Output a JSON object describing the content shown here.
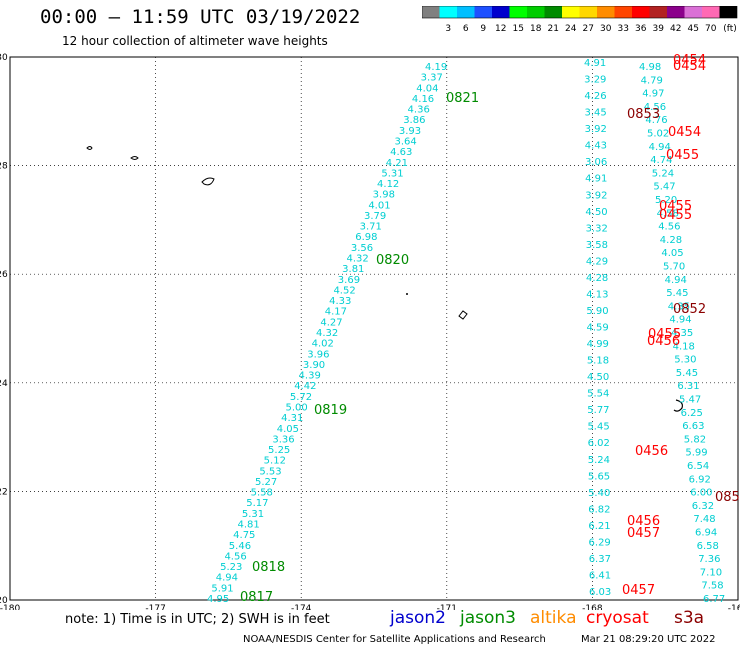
{
  "header": {
    "title": "00:00 – 11:59 UTC 03/19/2022",
    "subtitle": "12 hour collection of altimeter wave heights"
  },
  "colorbar": {
    "unit": "(ft)",
    "colors": [
      "#808080",
      "#00ffff",
      "#00bfff",
      "#1e50ff",
      "#0000cd",
      "#00ff00",
      "#00cd00",
      "#008b00",
      "#ffff00",
      "#ffd700",
      "#ff8c00",
      "#ff4500",
      "#ff0000",
      "#b22222",
      "#8b008b",
      "#da70d6",
      "#ff69b4",
      "#000000"
    ],
    "labels": [
      "3",
      "6",
      "9",
      "12",
      "15",
      "18",
      "21",
      "24",
      "27",
      "30",
      "33",
      "36",
      "39",
      "42",
      "45",
      "70"
    ]
  },
  "map": {
    "lon_range": [
      -180,
      -165
    ],
    "lat_range": [
      20,
      30
    ],
    "x_ticks": [
      "-180",
      "-177",
      "-174",
      "-171",
      "-168",
      "-165"
    ],
    "y_ticks": [
      "30",
      "28",
      "26",
      "24",
      "22",
      "20"
    ],
    "colors": {
      "jason2": "#0000cd",
      "jason3": "#008b00",
      "altika": "#ff8c00",
      "cryosat": "#ff0000",
      "s3a": "#8b0000",
      "track": "#00ced1"
    }
  },
  "tracks": {
    "left": [
      "4.19",
      "3.37",
      "4.04",
      "4.16",
      "4.36",
      "3.86",
      "3.93",
      "3.64",
      "4.63",
      "4.21",
      "5.31",
      "4.12",
      "3.98",
      "4.01",
      "3.79",
      "3.71",
      "6.98",
      "3.56",
      "4.32",
      "3.81",
      "3.69",
      "4.52",
      "4.33",
      "4.17",
      "4.27",
      "4.32",
      "4.02",
      "3.96",
      "3.90",
      "4.39",
      "4.42",
      "5.72",
      "5.00",
      "4.31",
      "4.05",
      "3.36",
      "5.25",
      "5.12",
      "5.53",
      "5.27",
      "5.58",
      "5.17",
      "5.31",
      "4.81",
      "4.75",
      "5.46",
      "4.56",
      "5.23",
      "4.94",
      "5.91",
      "4.95"
    ],
    "right1": [
      "4.91",
      "3.29",
      "4.26",
      "3.45",
      "3.92",
      "4.43",
      "3.06",
      "4.91",
      "3.92",
      "4.50",
      "3.32",
      "3.58",
      "4.29",
      "4.28",
      "4.13",
      "5.90",
      "4.59",
      "4.99",
      "5.18",
      "4.50",
      "5.54",
      "5.77",
      "5.45",
      "6.02",
      "5.24",
      "5.65",
      "5.40",
      "6.82",
      "6.21",
      "6.29",
      "6.37",
      "6.41",
      "6.03"
    ],
    "right2": [
      "4.98",
      "4.79",
      "4.97",
      "4.56",
      "4.76",
      "5.02",
      "4.94",
      "4.74",
      "5.24",
      "5.47",
      "5.20",
      "4.58",
      "4.56",
      "4.28",
      "4.05",
      "5.70",
      "4.94",
      "5.45",
      "4.35",
      "4.94",
      "4.35",
      "4.18",
      "5.30",
      "5.45",
      "6.31",
      "5.47",
      "6.25",
      "6.63",
      "5.82",
      "5.99",
      "6.54",
      "6.92",
      "6.00",
      "6.32",
      "7.48",
      "6.94",
      "6.58",
      "7.36",
      "7.10",
      "7.58",
      "6.77"
    ]
  },
  "time_labels": [
    {
      "text": "0821",
      "mission": "jason3"
    },
    {
      "text": "0820",
      "mission": "jason3"
    },
    {
      "text": "0819",
      "mission": "jason3"
    },
    {
      "text": "0818",
      "mission": "jason3"
    },
    {
      "text": "0817",
      "mission": "jason3"
    },
    {
      "text": "0454",
      "mission": "cryosat"
    },
    {
      "text": "0454",
      "mission": "cryosat"
    },
    {
      "text": "0853",
      "mission": "s3a"
    },
    {
      "text": "0454",
      "mission": "cryosat"
    },
    {
      "text": "0455",
      "mission": "cryosat"
    },
    {
      "text": "0455",
      "mission": "cryosat"
    },
    {
      "text": "0455",
      "mission": "cryosat"
    },
    {
      "text": "0852",
      "mission": "s3a"
    },
    {
      "text": "0455",
      "mission": "cryosat"
    },
    {
      "text": "0456",
      "mission": "cryosat"
    },
    {
      "text": "0456",
      "mission": "cryosat"
    },
    {
      "text": "0456",
      "mission": "cryosat"
    },
    {
      "text": "0457",
      "mission": "cryosat"
    },
    {
      "text": "0457",
      "mission": "cryosat"
    },
    {
      "text": "085",
      "mission": "s3a"
    }
  ],
  "footer": {
    "note": "note: 1) Time is in UTC; 2) SWH is in feet",
    "missions": [
      "jason2",
      "jason3",
      "altika",
      "cryosat",
      "s3a"
    ],
    "credit": "NOAA/NESDIS Center for Satellite Applications and Research",
    "generated": "Mar 21 08:29:20 UTC 2022"
  }
}
